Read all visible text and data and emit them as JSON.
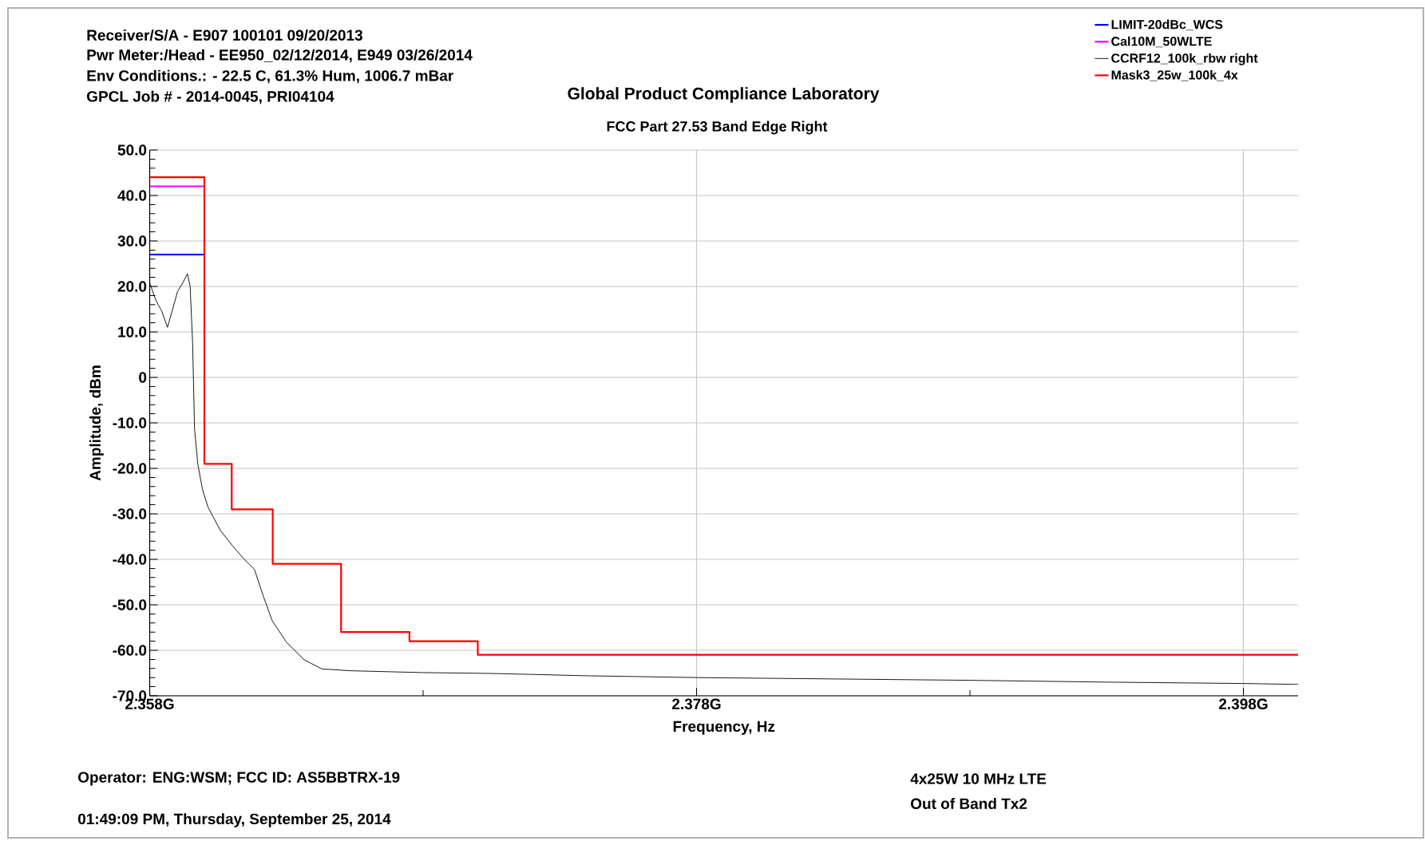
{
  "chart_data": {
    "type": "line",
    "title": "Global Product Compliance Laboratory",
    "subtitle": "FCC Part 27.53 Band Edge Right",
    "xlabel": "Frequency, Hz",
    "ylabel": "Amplitude, dBm",
    "annotations": [
      "Receiver/S/A - E907 100101 09/20/2013",
      "Pwr Meter:/Head - EE950_02/12/2014, E949 03/26/2014",
      "Env Conditions.: - 22.5 C, 61.3% Hum, 1006.7 mBar",
      "GPCL Job # - 2014-0045, PRI04104",
      "Operator:  ENG:WSM;  FCC ID:  AS5BBTRX-19",
      "01:49:09 PM, Thursday, September 25, 2014",
      "4x25W 10 MHz LTE",
      "Out of Band  Tx2"
    ],
    "xlim": [
      2.358,
      2.4
    ],
    "ylim": [
      -70,
      50
    ],
    "xticks": [
      {
        "value": 2.358,
        "label": "2.358G"
      },
      {
        "value": 2.368,
        "label": null
      },
      {
        "value": 2.378,
        "label": "2.378G"
      },
      {
        "value": 2.388,
        "label": null
      },
      {
        "value": 2.398,
        "label": "2.398G"
      }
    ],
    "yticks": [
      {
        "value": -70,
        "label": "-70.0"
      },
      {
        "value": -60,
        "label": "-60.0"
      },
      {
        "value": -50,
        "label": "-50.0"
      },
      {
        "value": -40,
        "label": "-40.0"
      },
      {
        "value": -30,
        "label": "-30.0"
      },
      {
        "value": -20,
        "label": "-20.0"
      },
      {
        "value": -10,
        "label": "-10.0"
      },
      0,
      {
        "value": 10,
        "label": "10.0"
      },
      {
        "value": 20,
        "label": "20.0"
      },
      {
        "value": 30,
        "label": "30.0"
      },
      {
        "value": 40,
        "label": "40.0"
      },
      {
        "value": 50,
        "label": "50.0"
      }
    ],
    "grid": true,
    "legend": "top right",
    "marker": "none",
    "line_style": "solid",
    "series": [
      {
        "name": "LIMIT-20dBc_WCS",
        "color": "#0000ff",
        "x": [
          2.358,
          2.36
        ],
        "values": [
          27,
          27
        ]
      },
      {
        "name": "Cal10M_50WLTE",
        "color": "#ff00ff",
        "x": [
          2.358,
          2.36
        ],
        "values": [
          42,
          42
        ]
      },
      {
        "name": "CCRF12_100k_rbw right",
        "color": "#000000",
        "x": [
          2.358,
          2.35823,
          2.35844,
          2.35865,
          2.35882,
          2.35902,
          2.35921,
          2.35938,
          2.35948,
          2.35957,
          2.35964,
          2.35976,
          2.35993,
          2.36013,
          2.36058,
          2.36104,
          2.36143,
          2.36183,
          2.36215,
          2.36248,
          2.363,
          2.36365,
          2.3643,
          2.36535,
          2.36796,
          2.37057,
          2.374,
          2.378,
          2.383,
          2.388,
          2.393,
          2.398,
          2.4
        ],
        "values": [
          20.8,
          16.9,
          14.6,
          11,
          14.6,
          18.9,
          20.8,
          22.8,
          20,
          7.5,
          -11.3,
          -19.1,
          -24.6,
          -28.5,
          -33.6,
          -37.1,
          -39.8,
          -42.2,
          -48,
          -53.5,
          -58.2,
          -62.1,
          -64.1,
          -64.5,
          -64.9,
          -65.1,
          -65.6,
          -66,
          -66.3,
          -66.6,
          -67,
          -67.3,
          -67.5
        ]
      },
      {
        "name": "Mask3_25w_100k_4x",
        "color": "#ff0000",
        "type": "step",
        "x": [
          2.358,
          2.36,
          2.361,
          2.3625,
          2.365,
          2.3675,
          2.37,
          2.4
        ],
        "values": [
          44,
          -19,
          -29,
          -41,
          -56,
          -58,
          -61,
          -61
        ]
      }
    ]
  }
}
